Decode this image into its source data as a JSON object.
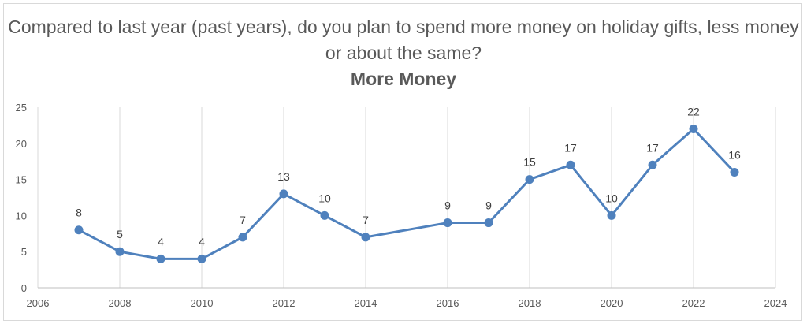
{
  "chart_data": {
    "type": "line",
    "title": "Compared to last year (past years), do you plan to spend more money on holiday gifts, less money or about the same?",
    "subtitle": "More Money",
    "xlabel": "",
    "ylabel": "",
    "xlim": [
      2006,
      2024
    ],
    "ylim": [
      0,
      25
    ],
    "x_ticks": [
      2006,
      2008,
      2010,
      2012,
      2014,
      2016,
      2018,
      2020,
      2022,
      2024
    ],
    "y_ticks": [
      0,
      5,
      10,
      15,
      20,
      25
    ],
    "grid": "vertical",
    "legend": "none",
    "series": [
      {
        "color": "#4f81bd",
        "x": [
          2007,
          2008,
          2009,
          2010,
          2011,
          2012,
          2013,
          2014,
          2016,
          2017,
          2018,
          2019,
          2020,
          2021,
          2022,
          2023
        ],
        "y": [
          8,
          5,
          4,
          4,
          7,
          13,
          10,
          7,
          9,
          9,
          15,
          17,
          10,
          17,
          22,
          16
        ]
      }
    ],
    "data_labels": true
  }
}
